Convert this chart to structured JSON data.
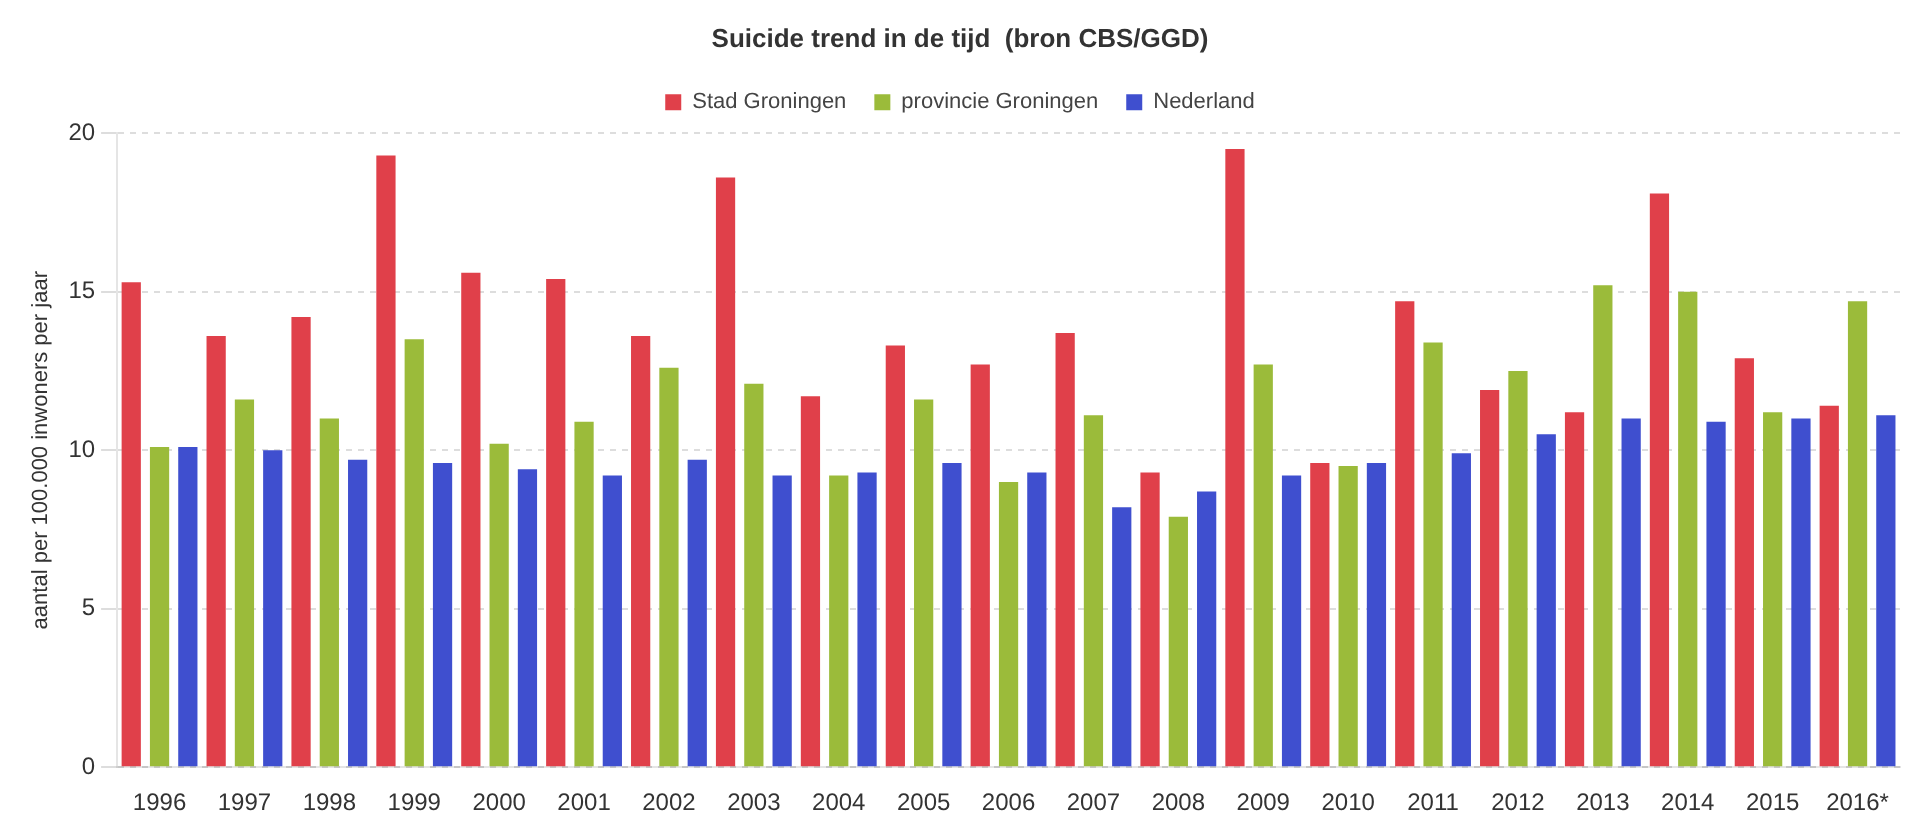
{
  "chart_data": {
    "type": "bar",
    "title": "Suicide trend in de tijd  (bron CBS/GGD)",
    "ylabel": "aantal per 100.000 inwoners per jaar",
    "categories": [
      "1996",
      "1997",
      "1998",
      "1999",
      "2000",
      "2001",
      "2002",
      "2003",
      "2004",
      "2005",
      "2006",
      "2007",
      "2008",
      "2009",
      "2010",
      "2011",
      "2012",
      "2013",
      "2014",
      "2015",
      "2016*"
    ],
    "series": [
      {
        "name": "Stad Groningen",
        "color": "#e0404a",
        "values": [
          15.3,
          13.6,
          14.2,
          19.3,
          15.6,
          15.4,
          13.6,
          18.6,
          11.7,
          13.3,
          12.7,
          13.7,
          9.3,
          19.5,
          9.6,
          14.7,
          11.9,
          11.2,
          18.1,
          12.9,
          11.4
        ]
      },
      {
        "name": "provincie Groningen",
        "color": "#9bbb3a",
        "values": [
          10.1,
          11.6,
          11.0,
          13.5,
          10.2,
          10.9,
          12.6,
          12.1,
          9.2,
          11.6,
          9.0,
          11.1,
          7.9,
          12.7,
          9.5,
          13.4,
          12.5,
          15.2,
          15.0,
          11.2,
          14.7
        ]
      },
      {
        "name": "Nederland",
        "color": "#3f4fcf",
        "values": [
          10.1,
          10.0,
          9.7,
          9.6,
          9.4,
          9.2,
          9.7,
          9.2,
          9.3,
          9.6,
          9.3,
          8.2,
          8.7,
          9.2,
          9.6,
          9.9,
          10.5,
          11.0,
          10.9,
          11.0,
          11.1
        ]
      }
    ],
    "ylim": [
      0,
      20
    ],
    "yticks": [
      0,
      5,
      10,
      15,
      20
    ],
    "grid": "y",
    "legend": "top"
  }
}
